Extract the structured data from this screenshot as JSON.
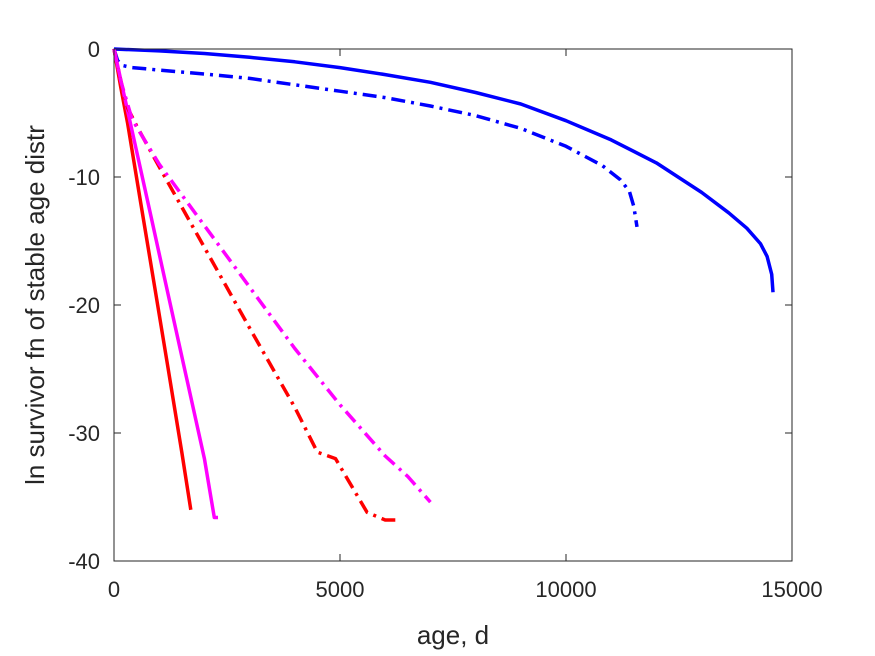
{
  "chart_data": {
    "type": "line",
    "title": "",
    "xlabel": "age, d",
    "ylabel": "ln survivor fn of stable age distr",
    "xlim": [
      0,
      15000
    ],
    "ylim": [
      -40,
      0
    ],
    "xticks": [
      0,
      5000,
      10000,
      15000
    ],
    "xtick_labels": [
      "0",
      "5000",
      "10000",
      "15000"
    ],
    "yticks": [
      0,
      -10,
      -20,
      -30,
      -40
    ],
    "ytick_labels": [
      "0",
      "-10",
      "-20",
      "-30",
      "-40"
    ],
    "grid": false,
    "legend": "none",
    "series": [
      {
        "color": "#0000ff",
        "style": "solid",
        "x": [
          0,
          1000,
          2000,
          3000,
          4000,
          5000,
          6000,
          7000,
          8000,
          9000,
          10000,
          11000,
          12000,
          13000,
          13600,
          14000,
          14300,
          14450,
          14550,
          14580
        ],
        "y": [
          0,
          -0.15,
          -0.35,
          -0.65,
          -1.0,
          -1.45,
          -2.0,
          -2.6,
          -3.4,
          -4.3,
          -5.6,
          -7.1,
          -8.9,
          -11.2,
          -12.8,
          -14.0,
          -15.2,
          -16.2,
          -17.6,
          -19.0
        ]
      },
      {
        "color": "#0000ff",
        "style": "dashdot",
        "x": [
          0,
          80,
          200,
          400,
          700,
          1000,
          2000,
          3000,
          4000,
          5000,
          6000,
          7000,
          8000,
          9000,
          10000,
          10800,
          11200,
          11400,
          11500,
          11570
        ],
        "y": [
          0,
          -0.9,
          -1.3,
          -1.45,
          -1.55,
          -1.65,
          -1.95,
          -2.3,
          -2.8,
          -3.3,
          -3.8,
          -4.45,
          -5.2,
          -6.2,
          -7.6,
          -9.1,
          -10.2,
          -11.1,
          -12.3,
          -13.9
        ]
      },
      {
        "color": "#ff0000",
        "style": "solid",
        "x": [
          0,
          150,
          300,
          600,
          900,
          1200,
          1500,
          1700
        ],
        "y": [
          0,
          -3.0,
          -5.8,
          -12.2,
          -18.6,
          -25.0,
          -31.5,
          -36.0
        ]
      },
      {
        "color": "#ff00ff",
        "style": "solid",
        "x": [
          0,
          200,
          400,
          800,
          1200,
          1600,
          2000,
          2220,
          2300
        ],
        "y": [
          0,
          -3.2,
          -6.4,
          -12.8,
          -19.2,
          -25.6,
          -32.0,
          -36.6,
          -36.6
        ]
      },
      {
        "color": "#ff0000",
        "style": "dashdot",
        "x": [
          0,
          150,
          300,
          500,
          1000,
          2000,
          3000,
          4000,
          4500,
          4900,
          5200,
          5600,
          6000,
          6300
        ],
        "y": [
          0,
          -2.5,
          -4.6,
          -6.0,
          -9.2,
          -15.5,
          -21.8,
          -28.0,
          -31.5,
          -32.0,
          -33.8,
          -36.2,
          -36.8,
          -36.8
        ]
      },
      {
        "color": "#ff00ff",
        "style": "dashdot",
        "x": [
          0,
          150,
          400,
          1000,
          2000,
          3000,
          4000,
          5000,
          6000,
          6500,
          7000
        ],
        "y": [
          0,
          -2.5,
          -5.5,
          -9.0,
          -13.8,
          -18.6,
          -23.4,
          -27.8,
          -31.8,
          -33.4,
          -35.4
        ]
      }
    ]
  }
}
